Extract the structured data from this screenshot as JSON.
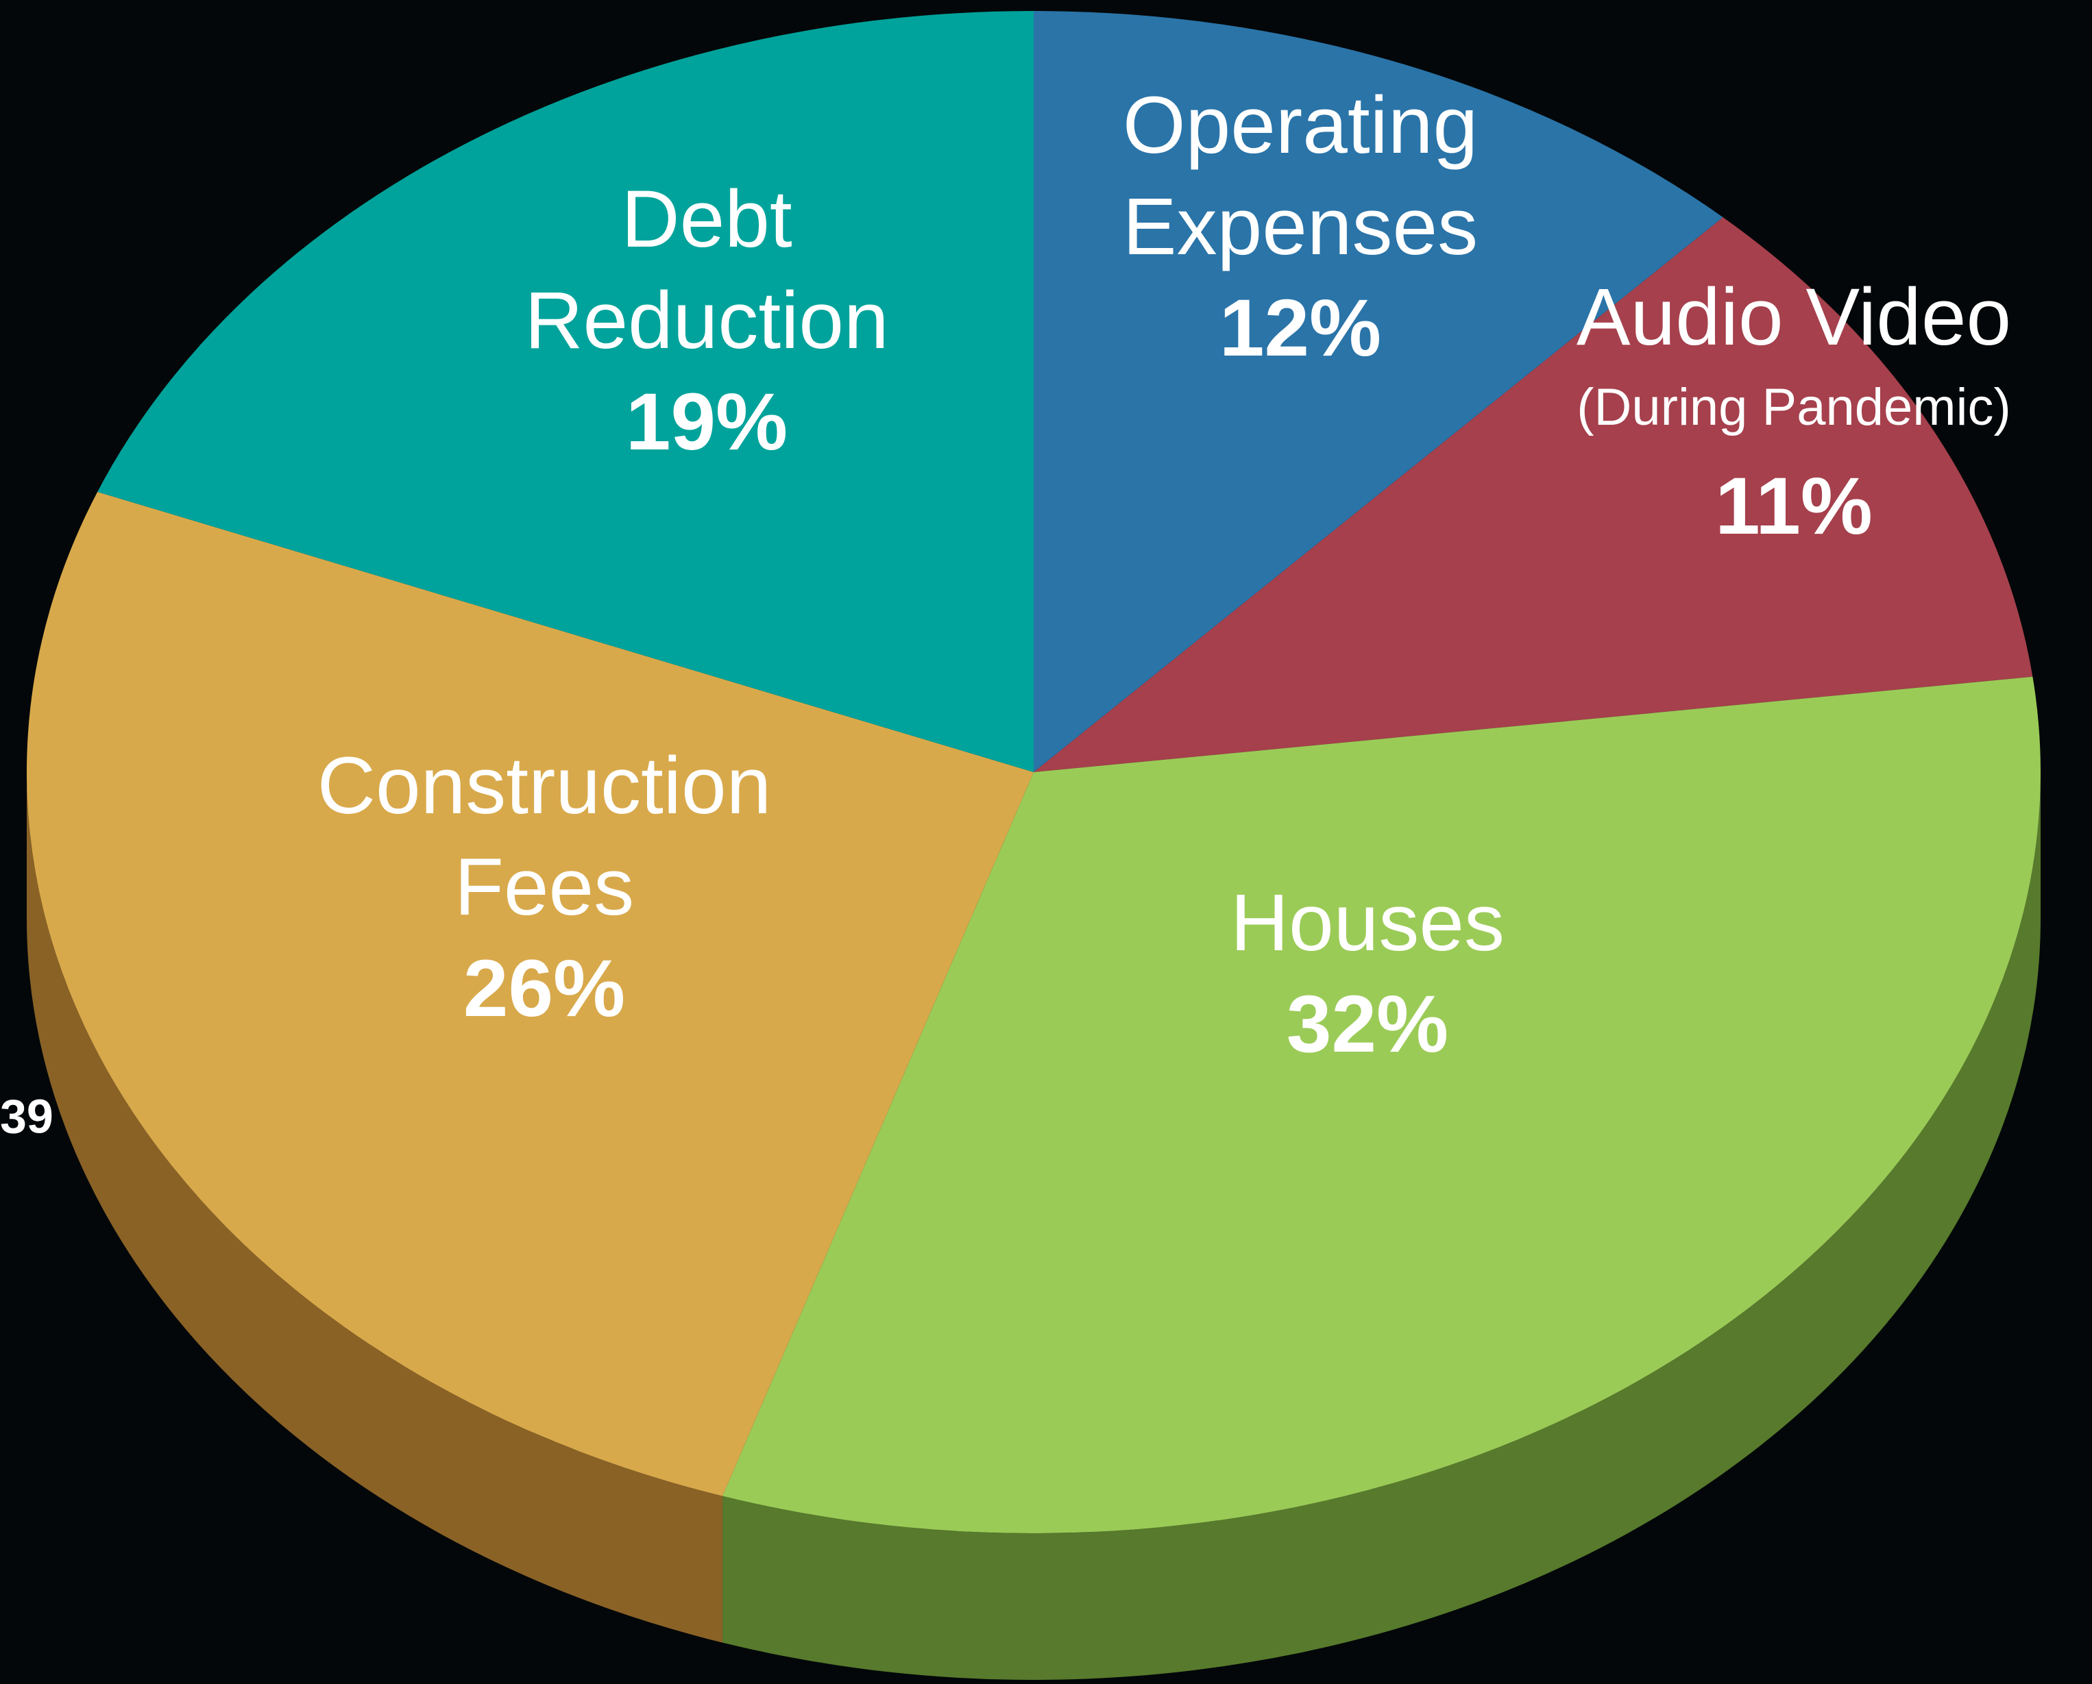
{
  "chart_data": {
    "type": "pie",
    "categories": [
      [
        "Operating",
        "Expenses"
      ],
      [
        "Audio Video"
      ],
      [
        "Houses"
      ],
      [
        "Construction",
        "Fees"
      ],
      [
        "Debt",
        "Reduction"
      ]
    ],
    "category_notes": [
      null,
      "(During Pandemic)",
      null,
      null,
      null
    ],
    "values": [
      12,
      11,
      32,
      26,
      19
    ],
    "value_labels": [
      "12%",
      "11%",
      "32%",
      "26%",
      "19%"
    ],
    "colors": [
      "#2a74a8",
      "#a5404c",
      "#9bcb57",
      "#d8a94b",
      "#00a39b"
    ],
    "side_colors": [
      "#1b4d70",
      "#6e2a32",
      "#577a2c",
      "#8a6226",
      "#00675f"
    ],
    "annotations": [
      "39"
    ]
  }
}
